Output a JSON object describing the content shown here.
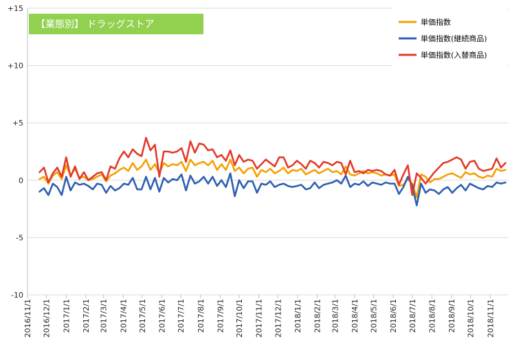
{
  "chart_data": {
    "type": "line",
    "title": "【業態別】 ドラッグストア",
    "xlabel": "",
    "ylabel": "",
    "ylim": [
      -10,
      15
    ],
    "yticks": [
      {
        "value": 15,
        "label": "+15"
      },
      {
        "value": 10,
        "label": "+10"
      },
      {
        "value": 5,
        "label": "+5"
      },
      {
        "value": 0,
        "label": "0"
      },
      {
        "value": -5,
        "label": "-5"
      },
      {
        "value": -10,
        "label": "-10"
      }
    ],
    "xlim": [
      "2016-11-01",
      "2018-11-30"
    ],
    "categories": [
      "2016/11/1",
      "2016/12/1",
      "2017/1/1",
      "2017/2/1",
      "2017/3/1",
      "2017/4/1",
      "2017/5/1",
      "2017/6/1",
      "2017/7/1",
      "2017/8/1",
      "2017/9/1",
      "2017/10/1",
      "2017/11/1",
      "2017/12/1",
      "2018/1/1",
      "2018/2/1",
      "2018/3/1",
      "2018/4/1",
      "2018/5/1",
      "2018/6/1",
      "2018/7/1",
      "2018/8/1",
      "2018/9/1",
      "2018/10/1",
      "2018/11/1"
    ],
    "grid": "horizontal",
    "legend": "top-right",
    "series": [
      {
        "name": "単価指数",
        "color": "#F5A000",
        "x": [
          "2016-11-20",
          "2016-11-27",
          "2016-12-04",
          "2016-12-11",
          "2016-12-18",
          "2016-12-25",
          "2017-01-01",
          "2017-01-08",
          "2017-01-15",
          "2017-01-22",
          "2017-01-29",
          "2017-02-05",
          "2017-02-12",
          "2017-02-19",
          "2017-02-26",
          "2017-03-05",
          "2017-03-12",
          "2017-03-19",
          "2017-03-26",
          "2017-04-02",
          "2017-04-09",
          "2017-04-16",
          "2017-04-23",
          "2017-04-30",
          "2017-05-07",
          "2017-05-14",
          "2017-05-21",
          "2017-05-28",
          "2017-06-04",
          "2017-06-11",
          "2017-06-18",
          "2017-06-25",
          "2017-07-02",
          "2017-07-09",
          "2017-07-16",
          "2017-07-23",
          "2017-07-30",
          "2017-08-06",
          "2017-08-13",
          "2017-08-20",
          "2017-08-27",
          "2017-09-03",
          "2017-09-10",
          "2017-09-17",
          "2017-09-24",
          "2017-10-01",
          "2017-10-08",
          "2017-10-15",
          "2017-10-22",
          "2017-10-29",
          "2017-11-05",
          "2017-11-12",
          "2017-11-19",
          "2017-11-26",
          "2017-12-03",
          "2017-12-10",
          "2017-12-17",
          "2017-12-24",
          "2017-12-31",
          "2018-01-07",
          "2018-01-14",
          "2018-01-21",
          "2018-01-28",
          "2018-02-04",
          "2018-02-11",
          "2018-02-18",
          "2018-02-25",
          "2018-03-04",
          "2018-03-11",
          "2018-03-18",
          "2018-03-25",
          "2018-04-01",
          "2018-04-08",
          "2018-04-15",
          "2018-04-22",
          "2018-04-29",
          "2018-05-06",
          "2018-05-13",
          "2018-05-20",
          "2018-05-27",
          "2018-06-03",
          "2018-06-10",
          "2018-06-17",
          "2018-06-24",
          "2018-07-01",
          "2018-07-08",
          "2018-07-15",
          "2018-07-22",
          "2018-07-29",
          "2018-08-05",
          "2018-08-12",
          "2018-08-19",
          "2018-08-26",
          "2018-09-02",
          "2018-09-09",
          "2018-09-16",
          "2018-09-23",
          "2018-09-30",
          "2018-10-07",
          "2018-10-14",
          "2018-10-21",
          "2018-10-28",
          "2018-11-04",
          "2018-11-11",
          "2018-11-18",
          "2018-11-25"
        ],
        "values": [
          0.1,
          0.3,
          -0.3,
          0.4,
          0.7,
          0.1,
          1.3,
          0.4,
          1.0,
          0.2,
          0.3,
          0.0,
          0.1,
          0.3,
          0.5,
          -0.1,
          0.4,
          0.6,
          0.9,
          1.1,
          0.8,
          1.5,
          0.9,
          1.2,
          1.8,
          0.9,
          1.4,
          0.6,
          1.5,
          1.2,
          1.4,
          1.3,
          1.6,
          0.8,
          1.8,
          1.3,
          1.5,
          1.6,
          1.3,
          1.7,
          0.9,
          1.4,
          0.9,
          1.8,
          0.8,
          1.1,
          0.6,
          1.0,
          1.1,
          0.3,
          0.9,
          0.7,
          1.0,
          0.6,
          0.8,
          1.1,
          0.6,
          0.9,
          0.8,
          1.0,
          0.5,
          0.7,
          0.9,
          0.6,
          0.8,
          1.0,
          0.7,
          0.8,
          0.5,
          1.2,
          0.5,
          0.4,
          0.6,
          0.8,
          0.6,
          0.7,
          0.6,
          0.4,
          0.5,
          0.4,
          0.5,
          -0.5,
          -0.4,
          0.1,
          -0.3,
          -1.5,
          0.5,
          0.3,
          -0.2,
          0.1,
          0.1,
          0.3,
          0.5,
          0.6,
          0.4,
          0.2,
          0.7,
          0.5,
          0.6,
          0.3,
          0.2,
          0.4,
          0.3,
          1.0,
          0.8,
          0.9
        ]
      },
      {
        "name": "単価指数(継続商品)",
        "color": "#2E5FB0",
        "x": [
          "2016-11-20",
          "2016-11-27",
          "2016-12-04",
          "2016-12-11",
          "2016-12-18",
          "2016-12-25",
          "2017-01-01",
          "2017-01-08",
          "2017-01-15",
          "2017-01-22",
          "2017-01-29",
          "2017-02-05",
          "2017-02-12",
          "2017-02-19",
          "2017-02-26",
          "2017-03-05",
          "2017-03-12",
          "2017-03-19",
          "2017-03-26",
          "2017-04-02",
          "2017-04-09",
          "2017-04-16",
          "2017-04-23",
          "2017-04-30",
          "2017-05-07",
          "2017-05-14",
          "2017-05-21",
          "2017-05-28",
          "2017-06-04",
          "2017-06-11",
          "2017-06-18",
          "2017-06-25",
          "2017-07-02",
          "2017-07-09",
          "2017-07-16",
          "2017-07-23",
          "2017-07-30",
          "2017-08-06",
          "2017-08-13",
          "2017-08-20",
          "2017-08-27",
          "2017-09-03",
          "2017-09-10",
          "2017-09-17",
          "2017-09-24",
          "2017-10-01",
          "2017-10-08",
          "2017-10-15",
          "2017-10-22",
          "2017-10-29",
          "2017-11-05",
          "2017-11-12",
          "2017-11-19",
          "2017-11-26",
          "2017-12-03",
          "2017-12-10",
          "2017-12-17",
          "2017-12-24",
          "2017-12-31",
          "2018-01-07",
          "2018-01-14",
          "2018-01-21",
          "2018-01-28",
          "2018-02-04",
          "2018-02-11",
          "2018-02-18",
          "2018-02-25",
          "2018-03-04",
          "2018-03-11",
          "2018-03-18",
          "2018-03-25",
          "2018-04-01",
          "2018-04-08",
          "2018-04-15",
          "2018-04-22",
          "2018-04-29",
          "2018-05-06",
          "2018-05-13",
          "2018-05-20",
          "2018-05-27",
          "2018-06-03",
          "2018-06-10",
          "2018-06-17",
          "2018-06-24",
          "2018-07-01",
          "2018-07-08",
          "2018-07-15",
          "2018-07-22",
          "2018-07-29",
          "2018-08-05",
          "2018-08-12",
          "2018-08-19",
          "2018-08-26",
          "2018-09-02",
          "2018-09-09",
          "2018-09-16",
          "2018-09-23",
          "2018-09-30",
          "2018-10-07",
          "2018-10-14",
          "2018-10-21",
          "2018-10-28",
          "2018-11-04",
          "2018-11-11",
          "2018-11-18",
          "2018-11-25"
        ],
        "values": [
          -1.0,
          -0.7,
          -1.3,
          -0.3,
          -0.6,
          -1.3,
          0.3,
          -0.9,
          -0.2,
          -0.4,
          -0.3,
          -0.5,
          -0.8,
          -0.3,
          -0.4,
          -1.1,
          -0.5,
          -0.9,
          -0.7,
          -0.3,
          -0.4,
          0.2,
          -0.8,
          -0.8,
          0.3,
          -0.8,
          0.2,
          -1.0,
          0.2,
          -0.2,
          0.1,
          0.0,
          0.5,
          -0.9,
          0.4,
          -0.3,
          -0.1,
          0.3,
          -0.3,
          0.3,
          -0.5,
          0.0,
          -0.6,
          0.6,
          -1.4,
          0.0,
          -0.7,
          -0.1,
          -0.1,
          -1.1,
          -0.3,
          -0.4,
          -0.1,
          -0.6,
          -0.4,
          -0.3,
          -0.5,
          -0.6,
          -0.5,
          -0.4,
          -0.8,
          -0.7,
          -0.2,
          -0.7,
          -0.4,
          -0.3,
          -0.2,
          0.0,
          -0.3,
          0.4,
          -0.6,
          -0.3,
          -0.4,
          -0.1,
          -0.5,
          -0.2,
          -0.3,
          -0.4,
          -0.2,
          -0.3,
          -0.3,
          -1.2,
          -0.6,
          0.3,
          -0.5,
          -2.2,
          -0.3,
          -1.1,
          -0.8,
          -0.9,
          -1.2,
          -0.8,
          -0.6,
          -1.1,
          -0.7,
          -0.4,
          -0.9,
          -0.3,
          -0.5,
          -0.7,
          -0.8,
          -0.5,
          -0.6,
          -0.2,
          -0.3,
          -0.2
        ]
      },
      {
        "name": "単価指数(入替商品)",
        "color": "#E23A2A",
        "x": [
          "2016-11-20",
          "2016-11-27",
          "2016-12-04",
          "2016-12-11",
          "2016-12-18",
          "2016-12-25",
          "2017-01-01",
          "2017-01-08",
          "2017-01-15",
          "2017-01-22",
          "2017-01-29",
          "2017-02-05",
          "2017-02-12",
          "2017-02-19",
          "2017-02-26",
          "2017-03-05",
          "2017-03-12",
          "2017-03-19",
          "2017-03-26",
          "2017-04-02",
          "2017-04-09",
          "2017-04-16",
          "2017-04-23",
          "2017-04-30",
          "2017-05-07",
          "2017-05-14",
          "2017-05-21",
          "2017-05-28",
          "2017-06-04",
          "2017-06-11",
          "2017-06-18",
          "2017-06-25",
          "2017-07-02",
          "2017-07-09",
          "2017-07-16",
          "2017-07-23",
          "2017-07-30",
          "2017-08-06",
          "2017-08-13",
          "2017-08-20",
          "2017-08-27",
          "2017-09-03",
          "2017-09-10",
          "2017-09-17",
          "2017-09-24",
          "2017-10-01",
          "2017-10-08",
          "2017-10-15",
          "2017-10-22",
          "2017-10-29",
          "2017-11-05",
          "2017-11-12",
          "2017-11-19",
          "2017-11-26",
          "2017-12-03",
          "2017-12-10",
          "2017-12-17",
          "2017-12-24",
          "2017-12-31",
          "2018-01-07",
          "2018-01-14",
          "2018-01-21",
          "2018-01-28",
          "2018-02-04",
          "2018-02-11",
          "2018-02-18",
          "2018-02-25",
          "2018-03-04",
          "2018-03-11",
          "2018-03-18",
          "2018-03-25",
          "2018-04-01",
          "2018-04-08",
          "2018-04-15",
          "2018-04-22",
          "2018-04-29",
          "2018-05-06",
          "2018-05-13",
          "2018-05-20",
          "2018-05-27",
          "2018-06-03",
          "2018-06-10",
          "2018-06-17",
          "2018-06-24",
          "2018-07-01",
          "2018-07-08",
          "2018-07-15",
          "2018-07-22",
          "2018-07-29",
          "2018-08-05",
          "2018-08-12",
          "2018-08-19",
          "2018-08-26",
          "2018-09-02",
          "2018-09-09",
          "2018-09-16",
          "2018-09-23",
          "2018-09-30",
          "2018-10-07",
          "2018-10-14",
          "2018-10-21",
          "2018-10-28",
          "2018-11-04",
          "2018-11-11",
          "2018-11-18",
          "2018-11-25"
        ],
        "values": [
          0.7,
          1.1,
          -0.2,
          0.6,
          1.1,
          0.3,
          2.0,
          0.3,
          1.2,
          0.1,
          0.7,
          0.0,
          0.3,
          0.6,
          0.7,
          0.0,
          1.2,
          1.0,
          1.9,
          2.5,
          2.0,
          2.7,
          2.3,
          2.1,
          3.7,
          2.6,
          3.1,
          0.3,
          2.5,
          2.5,
          2.4,
          2.5,
          2.8,
          1.6,
          3.4,
          2.4,
          3.2,
          3.1,
          2.6,
          2.7,
          2.0,
          2.2,
          1.7,
          2.6,
          1.3,
          2.2,
          1.6,
          1.8,
          1.7,
          1.0,
          1.4,
          1.8,
          1.5,
          1.2,
          2.0,
          2.0,
          1.1,
          1.3,
          1.7,
          1.4,
          1.0,
          1.7,
          1.5,
          1.1,
          1.6,
          1.5,
          1.3,
          1.6,
          1.5,
          0.5,
          1.7,
          0.7,
          0.8,
          0.6,
          0.9,
          0.8,
          0.9,
          0.8,
          0.5,
          0.4,
          0.9,
          -0.4,
          0.5,
          1.3,
          -1.3,
          0.6,
          0.2,
          -0.3,
          0.2,
          0.7,
          1.1,
          1.5,
          1.6,
          1.8,
          2.0,
          1.8,
          1.0,
          1.6,
          1.7,
          1.0,
          0.8,
          0.9,
          1.0,
          1.9,
          1.1,
          1.5
        ]
      }
    ]
  }
}
